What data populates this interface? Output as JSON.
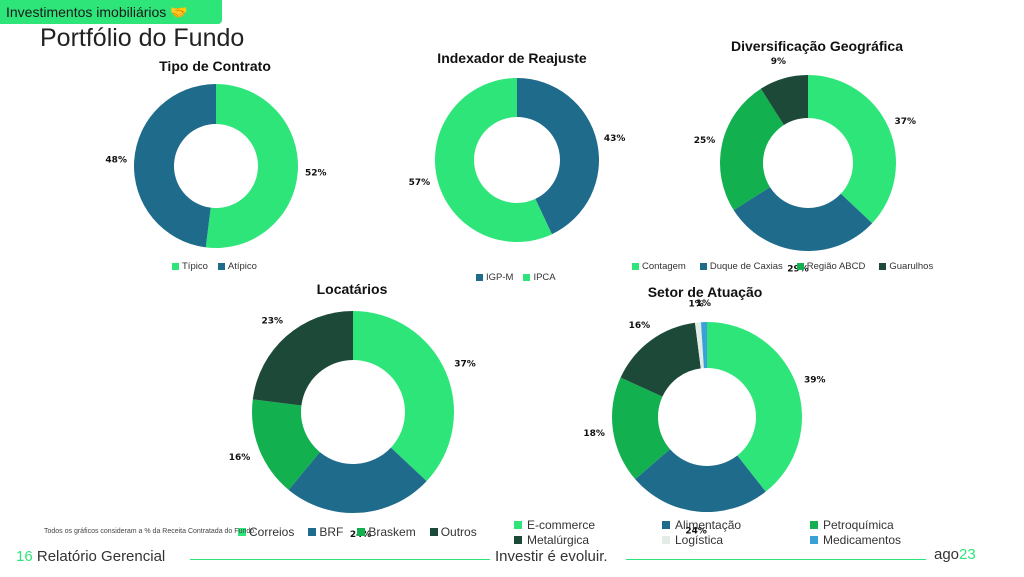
{
  "header": {
    "tag": "Investimentos imobiliários",
    "tag_icon": "handshake-icon",
    "title": "Portfólio do Fundo"
  },
  "colors": {
    "light_green": "#2ee57a",
    "blue": "#1f6b8c",
    "mid_green": "#13b04f",
    "dark_green": "#1d4a38",
    "pale": "#e3ece6",
    "sky": "#3aa0d6"
  },
  "chart_data": [
    {
      "id": "tipo",
      "type": "pie",
      "title": "Tipo de Contrato",
      "slices": [
        {
          "label": "Típico",
          "value": 52,
          "color": "#2ee57a"
        },
        {
          "label": "Atípico",
          "value": 48,
          "color": "#1f6b8c"
        }
      ]
    },
    {
      "id": "indexador",
      "type": "pie",
      "title": "Indexador de Reajuste",
      "slices": [
        {
          "label": "IGP-M",
          "value": 43,
          "color": "#1f6b8c"
        },
        {
          "label": "IPCA",
          "value": 57,
          "color": "#2ee57a"
        }
      ]
    },
    {
      "id": "geo",
      "type": "pie",
      "title": "Diversificação Geográfica",
      "slices": [
        {
          "label": "Contagem",
          "value": 37,
          "color": "#2ee57a"
        },
        {
          "label": "Duque de Caxias",
          "value": 29,
          "color": "#1f6b8c"
        },
        {
          "label": "Região ABCD",
          "value": 25,
          "color": "#13b04f"
        },
        {
          "label": "Guarulhos",
          "value": 9,
          "color": "#1d4a38"
        }
      ]
    },
    {
      "id": "locatarios",
      "type": "pie",
      "title": "Locatários",
      "slices": [
        {
          "label": "Correios",
          "value": 37,
          "color": "#2ee57a"
        },
        {
          "label": "BRF",
          "value": 24,
          "color": "#1f6b8c"
        },
        {
          "label": "Braskem",
          "value": 16,
          "color": "#13b04f"
        },
        {
          "label": "Outros",
          "value": 23,
          "color": "#1d4a38"
        }
      ]
    },
    {
      "id": "setor",
      "type": "pie",
      "title": "Setor de Atuação",
      "slices": [
        {
          "label": "E-commerce",
          "value": 39,
          "color": "#2ee57a"
        },
        {
          "label": "Alimentação",
          "value": 24,
          "color": "#1f6b8c"
        },
        {
          "label": "Petroquímica",
          "value": 18,
          "color": "#13b04f"
        },
        {
          "label": "Metalúrgica",
          "value": 16,
          "color": "#1d4a38"
        },
        {
          "label": "Logística",
          "value": 1,
          "color": "#e3ece6"
        },
        {
          "label": "Medicamentos",
          "value": 1,
          "color": "#3aa0d6"
        }
      ]
    }
  ],
  "footnote": "Todos os gráficos consideram a % da Receita Contratada do Fundo.",
  "footer": {
    "page": "16",
    "report": "Relatório Gerencial",
    "slogan": "Investir é evoluir.",
    "month": "ago",
    "year": "23"
  }
}
